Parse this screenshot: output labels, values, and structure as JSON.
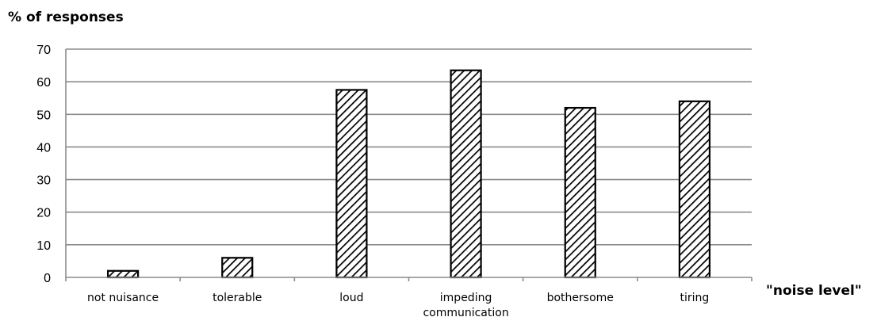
{
  "chart_data": {
    "type": "bar",
    "ylabel": "% of responses",
    "xlabel": "\"noise level\"",
    "categories": [
      "not nuisance",
      "tolerable",
      "loud",
      "impeding communication",
      "bothersome",
      "tiring"
    ],
    "category_lines": [
      [
        "not nuisance"
      ],
      [
        "tolerable"
      ],
      [
        "loud"
      ],
      [
        "impeding",
        "communication"
      ],
      [
        "bothersome"
      ],
      [
        "tiring"
      ]
    ],
    "values": [
      2,
      6,
      57.5,
      63.5,
      52,
      54
    ],
    "ylim": [
      0,
      70
    ],
    "yticks": [
      0,
      10,
      20,
      30,
      40,
      50,
      60,
      70
    ],
    "grid": true,
    "legend": "none",
    "bar_fill": "diagonal-hatch",
    "bar_color": "#000000",
    "grid_color": "#8c8c8c"
  }
}
